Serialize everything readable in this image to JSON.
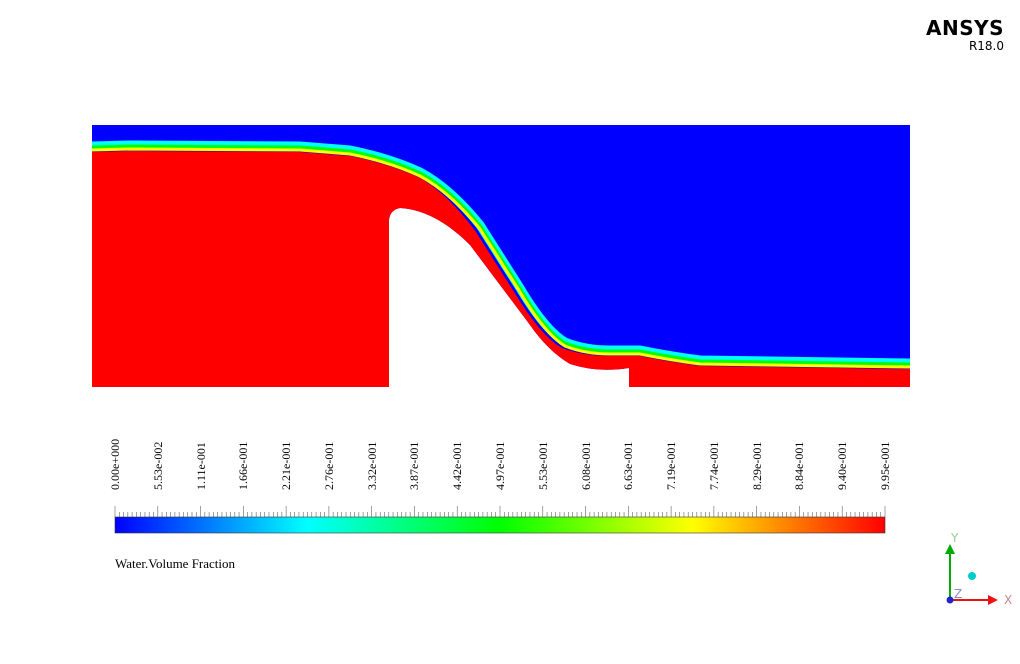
{
  "branding": {
    "name": "ANSYS",
    "version": "R18.0"
  },
  "legend": {
    "quantity": "Water.Volume Fraction",
    "ticks": [
      "0.00e+000",
      "5.53e-002",
      "1.11e-001",
      "1.66e-001",
      "2.21e-001",
      "2.76e-001",
      "3.32e-001",
      "3.87e-001",
      "4.42e-001",
      "4.97e-001",
      "5.53e-001",
      "6.08e-001",
      "6.63e-001",
      "7.19e-001",
      "7.74e-001",
      "8.29e-001",
      "8.84e-001",
      "9.40e-001",
      "9.95e-001"
    ],
    "colormap": [
      "#0000ff",
      "#00ffff",
      "#00ff00",
      "#ffff00",
      "#ff0000"
    ]
  },
  "colors": {
    "water": "#ff0000",
    "air": "#0000ff",
    "interface": [
      "#00ffff",
      "#00ff00",
      "#ffff00"
    ]
  },
  "axes": {
    "x_label": "X",
    "y_label": "Y",
    "z_label": "Z"
  }
}
